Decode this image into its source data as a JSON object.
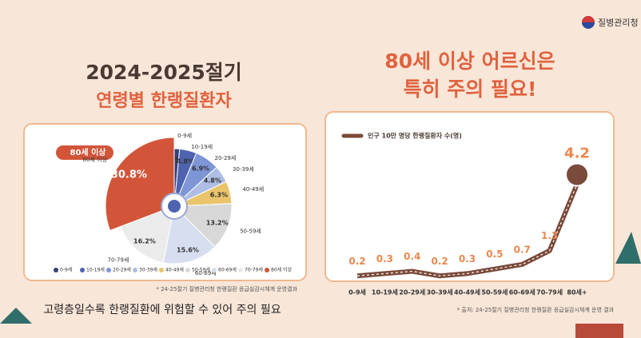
{
  "logo": "질병관리청",
  "chart_data": [
    {
      "type": "pie",
      "title": "2024-2025절기",
      "subtitle": "연령별 한랭질환자",
      "badge": "80세 이상",
      "categories": [
        "0-9세",
        "10-19세",
        "20-29세",
        "30-39세",
        "40-49세",
        "50-59세",
        "60-69세",
        "70-79세",
        "80세 이상"
      ],
      "values": [
        1.5,
        4.8,
        6.9,
        4.8,
        6.3,
        13.2,
        15.6,
        16.2,
        30.8
      ],
      "value_labels": [
        "1.5%",
        "4.8%",
        "6.9%",
        "4.8%",
        "6.3%",
        "13.2%",
        "15.6%",
        "16.2%",
        "30.8%"
      ],
      "colors": [
        "#34407a",
        "#4e63b0",
        "#7e95d6",
        "#aebde4",
        "#e9c46a",
        "#d8d8d8",
        "#d6def0",
        "#ebebeb",
        "#d2553a"
      ],
      "note": "* 24-25절기 질병관리청 한랭질환 응급실감시체계 운영결과",
      "caption": "고령층일수록 한랭질환에 위험할 수 있어 주의 필요"
    },
    {
      "type": "line",
      "title": "80세 이상 어르신은",
      "subtitle": "특히 주의 필요!",
      "categories": [
        "0-9세",
        "10-19세",
        "20-29세",
        "30-39세",
        "40-49세",
        "50-59세",
        "60-69세",
        "70-79세",
        "80세+"
      ],
      "series": [
        {
          "name": "인구 10만 명당 한랭질환자 수(명)",
          "color": "#7a4a3a",
          "values": [
            0.2,
            0.3,
            0.4,
            0.2,
            0.3,
            0.5,
            0.7,
            1.3,
            4.2
          ]
        }
      ],
      "ylim": [
        0,
        4.5
      ],
      "note": "* 출처: 24-25절기 질병관리청 한랭질환 응급실감시체계 운영 결과"
    }
  ]
}
